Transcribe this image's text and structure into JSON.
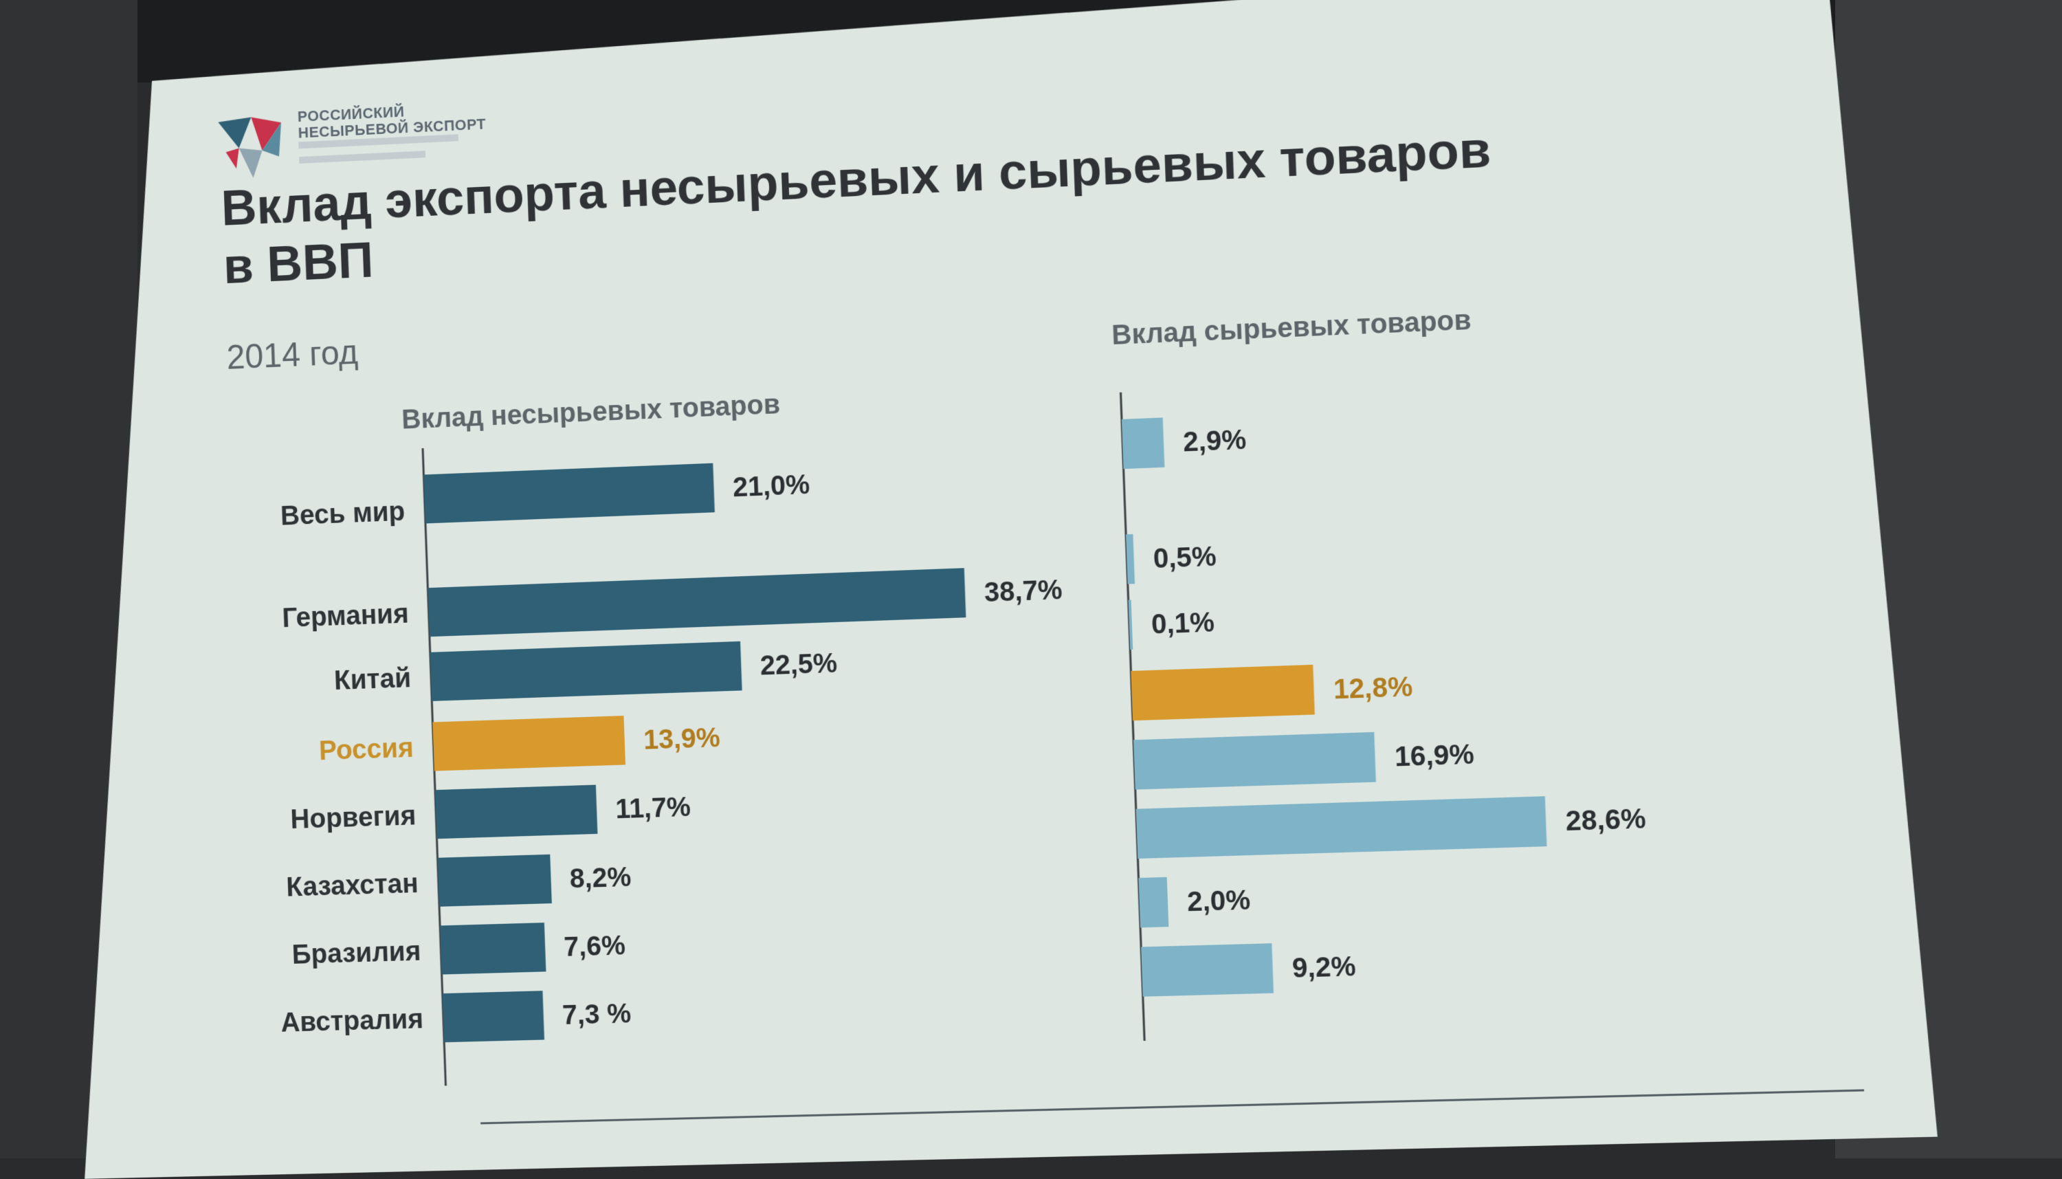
{
  "logo": {
    "line1": "РОССИЙСКИЙ",
    "line2": "НЕСЫРЬЕВОЙ ЭКСПОРТ"
  },
  "title": "Вклад экспорта несырьевых и сырьевых товаров в ВВП",
  "subtitle": "2014 год",
  "colors": {
    "left_bar": "#2f6076",
    "right_bar": "#7fb3c8",
    "highlight": "#d89a2c"
  },
  "chart_data": [
    {
      "type": "bar",
      "orientation": "horizontal",
      "title": "Вклад несырьевых товаров",
      "categories": [
        "Весь мир",
        "Германия",
        "Китай",
        "Россия",
        "Норвегия",
        "Казахстан",
        "Бразилия",
        "Австралия"
      ],
      "values": [
        21.0,
        38.7,
        22.5,
        13.9,
        11.7,
        8.2,
        7.6,
        7.3
      ],
      "value_labels": [
        "21,0%",
        "38,7%",
        "22,5%",
        "13,9%",
        "11,7%",
        "8,2%",
        "7,6%",
        "7,3 %"
      ],
      "highlight_category": "Россия",
      "xlim": [
        0,
        40
      ]
    },
    {
      "type": "bar",
      "orientation": "horizontal",
      "title": "Вклад сырьевых товаров",
      "categories": [
        "Весь мир",
        "Германия",
        "Китай",
        "Россия",
        "Норвегия",
        "Казахстан",
        "Бразилия",
        "Австралия"
      ],
      "values": [
        2.9,
        0.5,
        0.1,
        12.8,
        16.9,
        28.6,
        2.0,
        9.2
      ],
      "value_labels": [
        "2,9%",
        "0,5%",
        "0,1%",
        "12,8%",
        "16,9%",
        "28,6%",
        "2,0%",
        "9,2%"
      ],
      "highlight_category": "Россия",
      "xlim": [
        0,
        40
      ]
    }
  ]
}
